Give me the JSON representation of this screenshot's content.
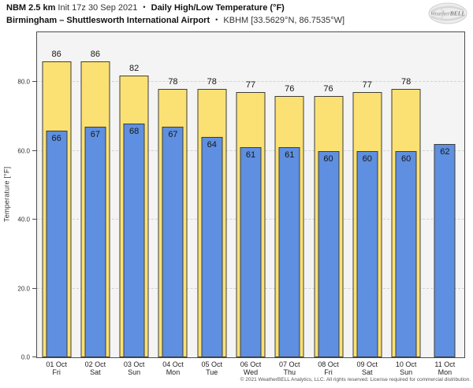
{
  "header": {
    "line1": {
      "model": "NBM 2.5 km",
      "init": "Init 17z 30 Sep 2021",
      "sep": "•",
      "product": "Daily High/Low Temperature (°F)"
    },
    "line2": {
      "station": "Birmingham – Shuttlesworth International Airport",
      "sep": "•",
      "station_id": "KBHM [33.5629°N, 86.7535°W]"
    }
  },
  "logo": {
    "text_weather": "Weather",
    "text_bell": "BELL"
  },
  "footer": {
    "copyright": "© 2021 WeatherBELL Analytics, LLC. All rights reserved. License required for commercial distribution."
  },
  "chart_data": {
    "type": "bar",
    "title": "Daily High/Low Temperature (°F)",
    "categories": [
      "01 Oct",
      "02 Oct",
      "03 Oct",
      "04 Oct",
      "05 Oct",
      "06 Oct",
      "07 Oct",
      "08 Oct",
      "09 Oct",
      "10 Oct",
      "11 Oct"
    ],
    "weekdays": [
      "Fri",
      "Sat",
      "Sun",
      "Mon",
      "Tue",
      "Wed",
      "Thu",
      "Fri",
      "Sat",
      "Sun",
      "Mon"
    ],
    "series": [
      {
        "name": "High",
        "color": "#fbe173",
        "values": [
          86,
          86,
          82,
          78,
          78,
          77,
          76,
          76,
          77,
          78,
          null
        ]
      },
      {
        "name": "Low",
        "color": "#5e8fe0",
        "values": [
          66,
          67,
          68,
          67,
          64,
          61,
          61,
          60,
          60,
          60,
          62
        ]
      }
    ],
    "ylabel": "Temperature [°F]",
    "yticks": [
      "0.0",
      "20.0",
      "40.0",
      "60.0",
      "80.0"
    ],
    "ytick_values": [
      0,
      20,
      40,
      60,
      80
    ],
    "ylim": [
      0,
      94.5
    ],
    "grid": "horizontal-dashed",
    "legend": "none",
    "plot_bg": "#f4f4f4",
    "bar_border": "#3d3d3d"
  }
}
